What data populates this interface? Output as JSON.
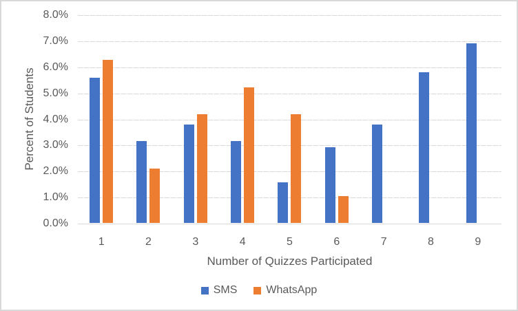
{
  "window": {
    "background": "#FFFFFF",
    "border_color": "#D9D9D9"
  },
  "chart_data": {
    "type": "bar",
    "title": "",
    "categories": [
      "1",
      "2",
      "3",
      "4",
      "5",
      "6",
      "7",
      "8",
      "9"
    ],
    "series": [
      {
        "name": "SMS",
        "color": "#4472C4",
        "values": [
          5.56,
          3.13,
          3.77,
          3.13,
          1.56,
          2.9,
          3.77,
          5.78,
          6.9
        ]
      },
      {
        "name": "WhatsApp",
        "color": "#ED7D31",
        "values": [
          6.25,
          2.08,
          4.17,
          5.21,
          4.17,
          1.04,
          0,
          0,
          0
        ]
      }
    ],
    "xlabel": "Number of Quizzes Participated",
    "ylabel": "Percent of Students",
    "ylim": [
      0,
      8
    ],
    "ytick_step": 1,
    "ytick_labels": [
      "0.0%",
      "1.0%",
      "2.0%",
      "3.0%",
      "4.0%",
      "5.0%",
      "6.0%",
      "7.0%",
      "8.0%"
    ],
    "grid": true,
    "legend_position": "bottom",
    "colors": {
      "gridline": "#D9D9D9",
      "axis_line": "#D9D9D9",
      "axis_text": "#595959"
    }
  }
}
